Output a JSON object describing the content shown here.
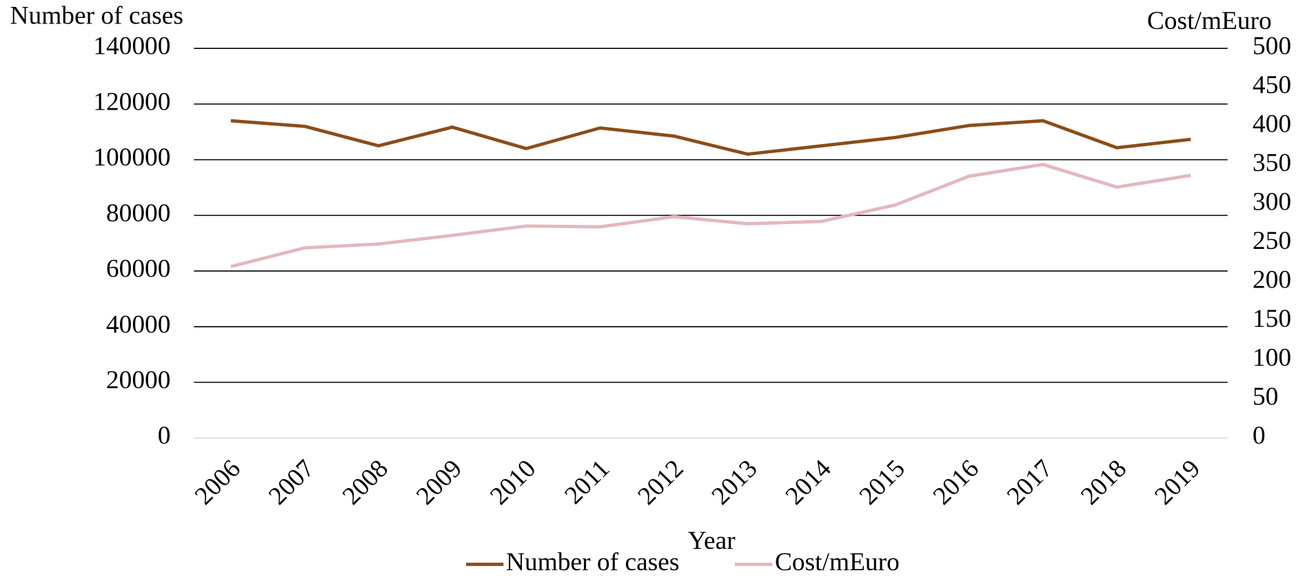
{
  "chart_data": {
    "type": "line",
    "x_label": "Year",
    "y_label": "Number of cases",
    "y2_label": "Cost/mEuro",
    "categories": [
      "2006",
      "2007",
      "2008",
      "2009",
      "2010",
      "2011",
      "2012",
      "2013",
      "2014",
      "2015",
      "2016",
      "2017",
      "2018",
      "2019"
    ],
    "series": [
      {
        "name": "Number of cases",
        "color": "#8b4d17",
        "values": [
          114000,
          112000,
          105000,
          111700,
          104000,
          111400,
          108500,
          102000,
          105000,
          108000,
          112300,
          114000,
          104300,
          107300
        ]
      },
      {
        "name": "Cost/mEuro",
        "color": "#e2b8bd",
        "axis": "y2",
        "values": [
          220,
          244,
          249,
          260,
          272,
          271,
          284,
          275,
          278,
          299,
          336,
          351,
          322,
          337
        ]
      }
    ],
    "ylim": [
      0,
      140000
    ],
    "yticks": [
      0,
      20000,
      40000,
      60000,
      80000,
      100000,
      120000,
      140000
    ],
    "y2lim": [
      0,
      500
    ],
    "y2ticks": [
      0,
      50,
      100,
      150,
      200,
      250,
      300,
      350,
      400,
      450,
      500
    ],
    "grid": true,
    "legend": "bottom"
  }
}
